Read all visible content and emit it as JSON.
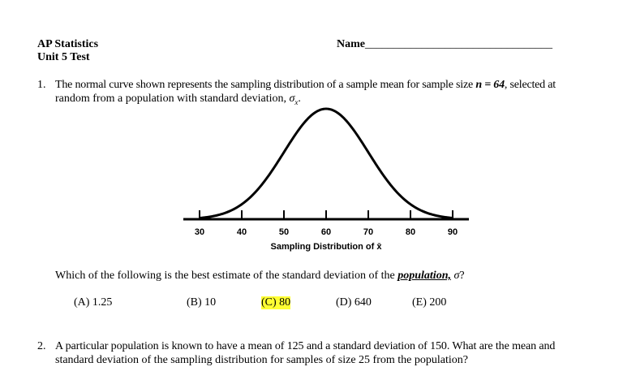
{
  "header": {
    "course": "AP Statistics",
    "unit": "Unit 5 Test",
    "name_label": "Name",
    "name_line": "_________________________________"
  },
  "q1": {
    "number": "1.",
    "line1_pre": "The normal curve shown represents the sampling distribution of a sample mean for sample size ",
    "line1_math": "n = 64",
    "line1_post": ", selected at",
    "line2_pre": "random from a population with standard deviation, ",
    "line2_math": "σ",
    "line2_sub": "x",
    "line2_post": ".",
    "question_pre": "Which of the following is the best estimate of the standard deviation of the ",
    "question_emph": "population,",
    "question_math": "σ",
    "question_post": "?",
    "choices": [
      {
        "label": "(A) 1.25",
        "highlighted": false
      },
      {
        "label": "(B) 10",
        "highlighted": false
      },
      {
        "label": "(C) 80",
        "highlighted": true
      },
      {
        "label": "(D) 640",
        "highlighted": false
      },
      {
        "label": "(E) 200",
        "highlighted": false
      }
    ],
    "highlight_color": "#ffff33"
  },
  "chart_data": {
    "type": "line",
    "description_type": "normal-curve",
    "mean": 60,
    "sd": 10,
    "xlim": [
      30,
      90
    ],
    "x_ticks": [
      30,
      40,
      50,
      60,
      70,
      80,
      90
    ],
    "xlabel": "Sampling Distribution of x̄",
    "grid": false
  },
  "q2": {
    "number": "2.",
    "line1": "A particular population is known to have a mean of 125 and a standard deviation of 150.  What are the mean and",
    "line2": "standard deviation of the sampling distribution for samples of size 25 from the population?"
  }
}
